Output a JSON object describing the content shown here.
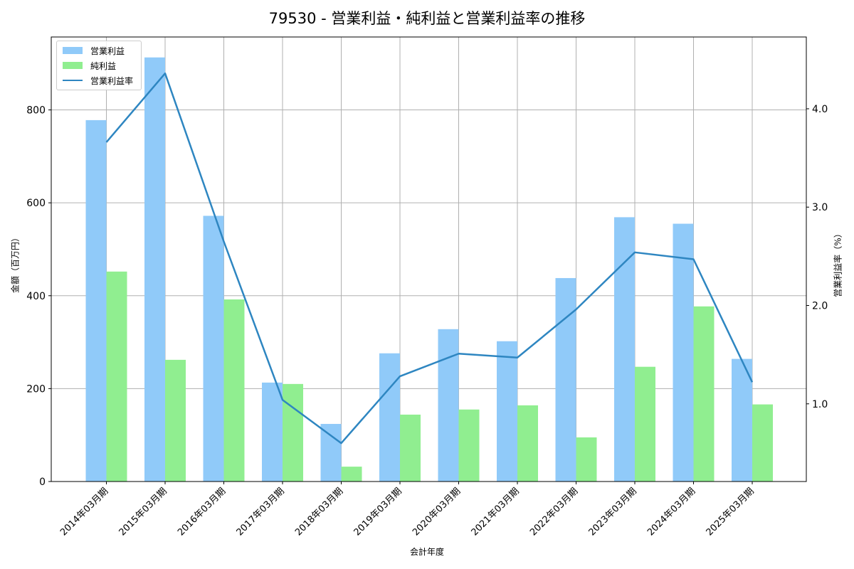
{
  "title": "79530 - 営業利益・純利益と営業利益率の推移",
  "chart_data": {
    "type": "bar",
    "title": "79530 - 営業利益・純利益と営業利益率の推移",
    "xlabel": "会計年度",
    "ylabel": "金額（百万円）",
    "ylabel_right": "営業利益率（%）",
    "categories": [
      "2014年03月期",
      "2015年03月期",
      "2016年03月期",
      "2017年03月期",
      "2018年03月期",
      "2019年03月期",
      "2020年03月期",
      "2021年03月期",
      "2022年03月期",
      "2023年03月期",
      "2024年03月期",
      "2025年03月期"
    ],
    "series": [
      {
        "name": "営業利益",
        "type": "bar",
        "axis": "left",
        "color": "#90caf9",
        "values": [
          778,
          913,
          572,
          213,
          124,
          276,
          328,
          302,
          438,
          569,
          555,
          264
        ]
      },
      {
        "name": "純利益",
        "type": "bar",
        "axis": "left",
        "color": "#90ee90",
        "values": [
          452,
          262,
          392,
          210,
          32,
          144,
          155,
          164,
          95,
          247,
          377,
          166
        ]
      },
      {
        "name": "営業利益率",
        "type": "line",
        "axis": "right",
        "color": "#2e86c1",
        "values": [
          3.66,
          4.36,
          2.65,
          1.04,
          0.6,
          1.28,
          1.51,
          1.47,
          1.96,
          2.54,
          2.47,
          1.22
        ]
      }
    ],
    "ylim": [
      0,
      957
    ],
    "ylim_right": [
      0.21,
      4.73
    ],
    "yticks": [
      0,
      200,
      400,
      600,
      800
    ],
    "yticks_right": [
      "1.0",
      "2.0",
      "3.0",
      "4.0"
    ],
    "yticks_right_values": [
      1.0,
      2.0,
      3.0,
      4.0
    ],
    "grid": true,
    "legend_position": "upper left"
  }
}
